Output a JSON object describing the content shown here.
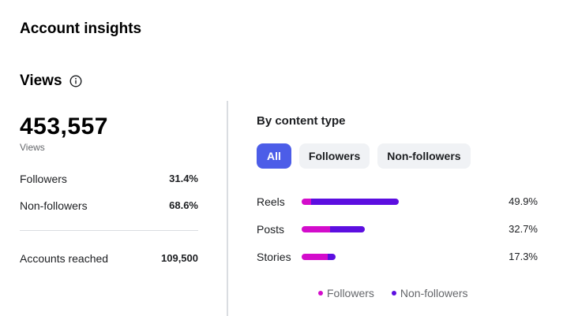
{
  "page": {
    "title": "Account insights"
  },
  "views": {
    "title": "Views",
    "info_icon": "info-icon",
    "total": "453,557",
    "total_label": "Views",
    "followers_label": "Followers",
    "followers_value": "31.4%",
    "nonfollowers_label": "Non-followers",
    "nonfollowers_value": "68.6%",
    "reached_label": "Accounts reached",
    "reached_value": "109,500"
  },
  "content_type": {
    "title": "By content type",
    "filters": [
      {
        "label": "All",
        "active": true
      },
      {
        "label": "Followers",
        "active": false
      },
      {
        "label": "Non-followers",
        "active": false
      }
    ],
    "legend": [
      {
        "label": "Followers",
        "color": "#d30ccb"
      },
      {
        "label": "Non-followers",
        "color": "#5c0ee0"
      }
    ]
  },
  "chart_data": {
    "type": "bar",
    "orientation": "horizontal",
    "stacked": true,
    "categories": [
      "Reels",
      "Posts",
      "Stories"
    ],
    "value_labels": [
      "49.9%",
      "32.7%",
      "17.3%"
    ],
    "values": [
      49.9,
      32.7,
      17.3
    ],
    "series": [
      {
        "name": "Followers",
        "values": [
          4.9,
          14.5,
          13.5
        ]
      },
      {
        "name": "Non-followers",
        "values": [
          45.0,
          18.2,
          3.8
        ]
      }
    ],
    "colors": {
      "Followers": "#d30ccb",
      "Non-followers": "#5c0ee0"
    },
    "legend_position": "bottom"
  }
}
